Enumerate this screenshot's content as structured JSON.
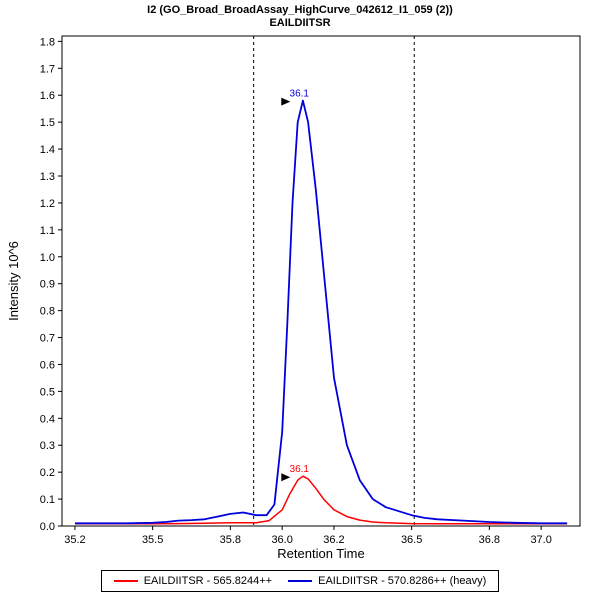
{
  "chart_data": {
    "type": "line",
    "title": "I2 (GO_Broad_BroadAssay_HighCurve_042612_I1_059 (2))",
    "subtitle": "EAILDIITSR",
    "xlabel": "Retention Time",
    "ylabel": "Intensity 10^6",
    "xlim": [
      35.15,
      37.15
    ],
    "ylim": [
      0,
      1.82
    ],
    "grid": false,
    "legend_position": "bottom",
    "x_ticks": [
      35.2,
      35.5,
      35.8,
      36.0,
      36.2,
      36.5,
      36.8,
      37.0
    ],
    "x_tick_labels": [
      "35.2",
      "35.5",
      "35.8",
      "36.0",
      "36.2",
      "36.5",
      "36.8",
      "37.0"
    ],
    "y_ticks": [
      0.0,
      0.1,
      0.2,
      0.3,
      0.4,
      0.5,
      0.6,
      0.7,
      0.8,
      0.9,
      1.0,
      1.1,
      1.2,
      1.3,
      1.4,
      1.5,
      1.6,
      1.7,
      1.8
    ],
    "y_tick_labels": [
      "0.0",
      "0.1",
      "0.2",
      "0.3",
      "0.4",
      "0.5",
      "0.6",
      "0.7",
      "0.8",
      "0.9",
      "1.0",
      "1.1",
      "1.2",
      "1.3",
      "1.4",
      "1.5",
      "1.6",
      "1.7",
      "1.8"
    ],
    "peak_boundaries": [
      35.89,
      36.51
    ],
    "series": [
      {
        "name": "EAILDIITSR - 565.8244++",
        "color": "#ff0000",
        "stroke_width": 1.5,
        "peak_label": "36.1",
        "peak_x": 36.07,
        "peak_y": 0.185,
        "x": [
          35.2,
          35.3,
          35.4,
          35.5,
          35.6,
          35.7,
          35.8,
          35.85,
          35.9,
          35.95,
          36.0,
          36.03,
          36.06,
          36.08,
          36.1,
          36.13,
          36.16,
          36.2,
          36.25,
          36.3,
          36.35,
          36.4,
          36.5,
          36.6,
          36.7,
          36.8,
          36.9,
          37.0,
          37.1
        ],
        "y": [
          0.008,
          0.008,
          0.008,
          0.008,
          0.009,
          0.01,
          0.012,
          0.012,
          0.012,
          0.02,
          0.06,
          0.12,
          0.17,
          0.185,
          0.175,
          0.14,
          0.1,
          0.06,
          0.035,
          0.022,
          0.015,
          0.012,
          0.009,
          0.008,
          0.008,
          0.008,
          0.008,
          0.008,
          0.008
        ]
      },
      {
        "name": "EAILDIITSR - 570.8286++ (heavy)",
        "color": "#0000dd",
        "stroke_width": 1.8,
        "peak_label": "36.1",
        "peak_x": 36.07,
        "peak_y": 1.58,
        "x": [
          35.2,
          35.3,
          35.4,
          35.5,
          35.55,
          35.6,
          35.65,
          35.7,
          35.75,
          35.8,
          35.85,
          35.9,
          35.94,
          35.97,
          36.0,
          36.02,
          36.04,
          36.06,
          36.08,
          36.1,
          36.13,
          36.16,
          36.2,
          36.25,
          36.3,
          36.35,
          36.4,
          36.45,
          36.5,
          36.55,
          36.6,
          36.7,
          36.8,
          36.9,
          37.0,
          37.1
        ],
        "y": [
          0.01,
          0.01,
          0.01,
          0.012,
          0.015,
          0.02,
          0.022,
          0.025,
          0.035,
          0.045,
          0.05,
          0.04,
          0.04,
          0.08,
          0.35,
          0.75,
          1.2,
          1.5,
          1.58,
          1.5,
          1.25,
          0.95,
          0.55,
          0.3,
          0.17,
          0.1,
          0.07,
          0.055,
          0.04,
          0.03,
          0.025,
          0.02,
          0.015,
          0.012,
          0.01,
          0.01
        ]
      }
    ]
  },
  "legend": {
    "items": [
      {
        "label": "EAILDIITSR - 565.8244++",
        "color": "#ff0000"
      },
      {
        "label": "EAILDIITSR - 570.8286++ (heavy)",
        "color": "#0000dd"
      }
    ]
  },
  "colors": {
    "axis": "#000000",
    "boundary_line": "#000000",
    "background": "#ffffff"
  }
}
